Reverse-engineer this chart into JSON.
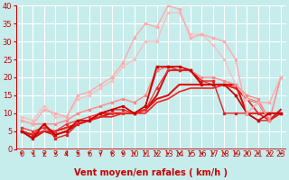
{
  "xlabel": "Vent moyen/en rafales ( km/h )",
  "xlim": [
    -0.5,
    23.5
  ],
  "ylim": [
    0,
    40
  ],
  "yticks": [
    0,
    5,
    10,
    15,
    20,
    25,
    30,
    35,
    40
  ],
  "xticks": [
    0,
    1,
    2,
    3,
    4,
    5,
    6,
    7,
    8,
    9,
    10,
    11,
    12,
    13,
    14,
    15,
    16,
    17,
    18,
    19,
    20,
    21,
    22,
    23
  ],
  "bg_color": "#c6ecec",
  "grid_color": "#b0d8d8",
  "lines": [
    {
      "x": [
        0,
        1,
        2,
        3,
        4,
        5,
        6,
        7,
        8,
        9,
        10,
        11,
        12,
        13,
        14,
        15,
        16,
        17,
        18,
        19,
        20,
        21,
        22,
        23
      ],
      "y": [
        5,
        3,
        7,
        4,
        5,
        8,
        8,
        10,
        11,
        12,
        10,
        12,
        23,
        23,
        23,
        22,
        18,
        18,
        18,
        15,
        10,
        8,
        10,
        10
      ],
      "color": "#cc0000",
      "lw": 1.2,
      "marker": "s",
      "ms": 2.0,
      "zorder": 5
    },
    {
      "x": [
        0,
        1,
        2,
        3,
        4,
        5,
        6,
        7,
        8,
        9,
        10,
        11,
        12,
        13,
        14,
        15,
        16,
        17,
        18,
        19,
        20,
        21,
        22,
        23
      ],
      "y": [
        5,
        4,
        7,
        3,
        4,
        7,
        8,
        10,
        11,
        11,
        10,
        12,
        22,
        23,
        22,
        22,
        19,
        19,
        10,
        10,
        10,
        8,
        8,
        10
      ],
      "color": "#dd2222",
      "lw": 1.0,
      "marker": "s",
      "ms": 1.8,
      "zorder": 4
    },
    {
      "x": [
        0,
        1,
        2,
        3,
        4,
        5,
        6,
        7,
        8,
        9,
        10,
        11,
        12,
        13,
        14,
        15,
        16,
        17,
        18,
        19,
        20,
        21,
        22,
        23
      ],
      "y": [
        6,
        5,
        6,
        5,
        7,
        8,
        9,
        10,
        10,
        10,
        10,
        11,
        17,
        22,
        22,
        22,
        19,
        18,
        18,
        15,
        10,
        10,
        10,
        10
      ],
      "color": "#ee3333",
      "lw": 0.9,
      "marker": "s",
      "ms": 1.5,
      "zorder": 3
    },
    {
      "x": [
        0,
        1,
        2,
        3,
        4,
        5,
        6,
        7,
        8,
        9,
        10,
        11,
        12,
        13,
        14,
        15,
        16,
        17,
        18,
        19,
        20,
        21,
        22,
        23
      ],
      "y": [
        5,
        3,
        5,
        4,
        5,
        7,
        8,
        10,
        10,
        10,
        10,
        11,
        15,
        22,
        22,
        22,
        18,
        18,
        18,
        18,
        10,
        10,
        10,
        10
      ],
      "color": "#cc1111",
      "lw": 1.5,
      "marker": null,
      "ms": 0,
      "zorder": 2
    },
    {
      "x": [
        0,
        1,
        2,
        3,
        4,
        5,
        6,
        7,
        8,
        9,
        10,
        11,
        12,
        13,
        14,
        15,
        16,
        17,
        18,
        19,
        20,
        21,
        22,
        23
      ],
      "y": [
        5,
        4,
        5,
        5,
        6,
        7,
        8,
        9,
        10,
        10,
        10,
        11,
        14,
        15,
        18,
        18,
        18,
        18,
        18,
        17,
        14,
        13,
        8,
        11
      ],
      "color": "#dd1111",
      "lw": 1.5,
      "marker": null,
      "ms": 0,
      "zorder": 2
    },
    {
      "x": [
        0,
        1,
        2,
        3,
        4,
        5,
        6,
        7,
        8,
        9,
        10,
        11,
        12,
        13,
        14,
        15,
        16,
        17,
        18,
        19,
        20,
        21,
        22,
        23
      ],
      "y": [
        5,
        4,
        5,
        5,
        6,
        7,
        8,
        9,
        9,
        10,
        10,
        10,
        13,
        14,
        16,
        17,
        17,
        17,
        18,
        17,
        14,
        10,
        8,
        10
      ],
      "color": "#ee2222",
      "lw": 1.2,
      "marker": null,
      "ms": 0,
      "zorder": 2
    },
    {
      "x": [
        0,
        1,
        2,
        3,
        4,
        5,
        6,
        7,
        8,
        9,
        10,
        11,
        12,
        13,
        14,
        15,
        16,
        17,
        18,
        19,
        20,
        21,
        22,
        23
      ],
      "y": [
        8,
        7,
        11,
        10,
        9,
        15,
        16,
        18,
        20,
        24,
        31,
        35,
        34,
        40,
        39,
        31,
        32,
        31,
        30,
        25,
        10,
        13,
        13,
        20
      ],
      "color": "#ffaaaa",
      "lw": 1.0,
      "marker": "s",
      "ms": 2.0,
      "zorder": 6
    },
    {
      "x": [
        0,
        1,
        2,
        3,
        4,
        5,
        6,
        7,
        8,
        9,
        10,
        11,
        12,
        13,
        14,
        15,
        16,
        17,
        18,
        19,
        20,
        21,
        22,
        23
      ],
      "y": [
        8,
        7,
        7,
        7,
        8,
        10,
        11,
        12,
        13,
        14,
        13,
        15,
        22,
        23,
        23,
        22,
        20,
        20,
        19,
        18,
        15,
        14,
        8,
        20
      ],
      "color": "#ff8888",
      "lw": 1.0,
      "marker": "s",
      "ms": 2.0,
      "zorder": 4
    },
    {
      "x": [
        0,
        1,
        2,
        3,
        4,
        5,
        6,
        7,
        8,
        9,
        10,
        11,
        12,
        13,
        14,
        15,
        16,
        17,
        18,
        19,
        20,
        21,
        22,
        23
      ],
      "y": [
        9,
        8,
        12,
        9,
        9,
        14,
        15,
        17,
        19,
        23,
        25,
        30,
        30,
        38,
        38,
        32,
        32,
        29,
        25,
        18,
        14,
        13,
        8,
        20
      ],
      "color": "#ffbbbb",
      "lw": 0.9,
      "marker": "s",
      "ms": 1.8,
      "zorder": 3
    }
  ],
  "arrow_color": "#cc0000",
  "xlabel_color": "#cc0000",
  "xlabel_fontsize": 7,
  "tick_color": "#cc0000",
  "tick_fontsize": 6
}
